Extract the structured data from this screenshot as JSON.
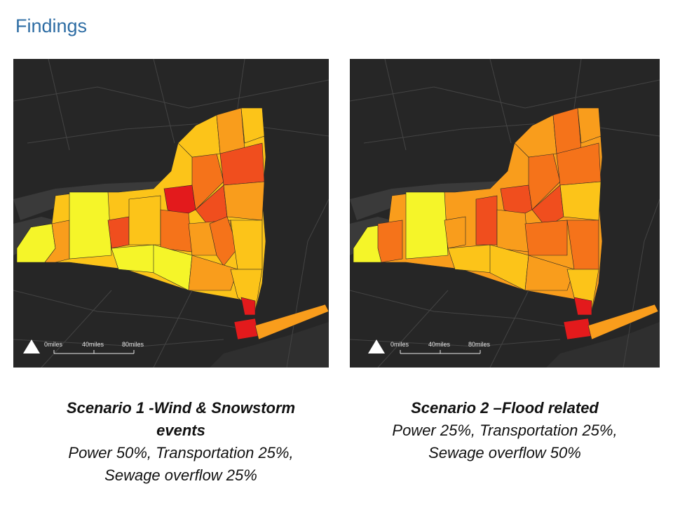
{
  "slide": {
    "title": "Findings"
  },
  "colors": {
    "map_background": "#262626",
    "water": "#3a3a3a",
    "road": "#4a4a4a",
    "yellow": "#f5f529",
    "light_orange": "#fcc419",
    "orange": "#f99d1c",
    "dark_orange": "#f5731a",
    "red_orange": "#f04e1e",
    "red": "#e31a1c"
  },
  "maps": [
    {
      "scale": {
        "label_0": "0miles",
        "label_40": "40miles",
        "label_80": "80miles"
      },
      "caption": {
        "heading": "Scenario 1 -Wind & Snowstorm events",
        "body": "Power 50%, Transportation 25%, Sewage overflow 25%"
      }
    },
    {
      "scale": {
        "label_0": "0miles",
        "label_40": "40miles",
        "label_80": "80miles"
      },
      "caption": {
        "heading": "Scenario 2 –Flood related",
        "body": "Power 25%, Transportation 25%, Sewage overflow 50%"
      }
    }
  ]
}
